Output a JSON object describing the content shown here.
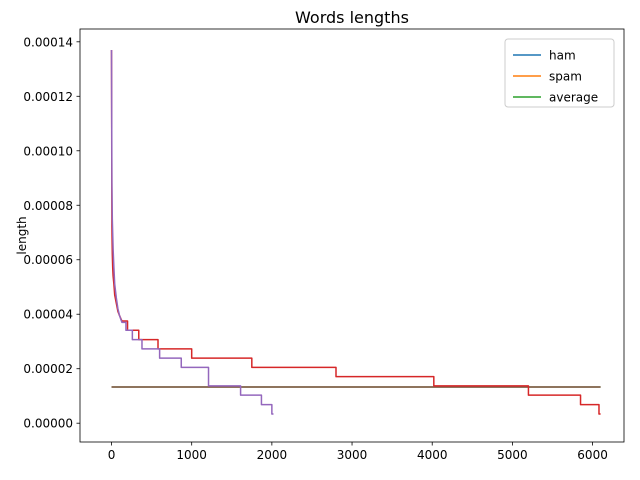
{
  "chart_data": {
    "type": "line",
    "title": "Words lengths",
    "xlabel": "",
    "ylabel": "length",
    "xlim": [
      -393,
      6392
    ],
    "ylim": [
      -6.9e-06,
      0.0001447
    ],
    "xticks": [
      0,
      1000,
      2000,
      3000,
      4000,
      5000,
      6000
    ],
    "xtick_labels": [
      "0",
      "1000",
      "2000",
      "3000",
      "4000",
      "5000",
      "6000"
    ],
    "yticks": [
      0.0,
      2e-05,
      4e-05,
      6e-05,
      8e-05,
      0.0001,
      0.00012,
      0.00014
    ],
    "ytick_labels": [
      "0.00000",
      "0.00002",
      "0.00004",
      "0.00006",
      "0.00008",
      "0.00010",
      "0.00012",
      "0.00014"
    ],
    "grid": false,
    "legend_position": "top-right",
    "legend": [
      {
        "label": "ham",
        "color": "#1f77b4"
      },
      {
        "label": "spam",
        "color": "#ff7f0e"
      },
      {
        "label": "average",
        "color": "#2ca02c"
      }
    ],
    "series": [
      {
        "name": "average",
        "color": "#2ca02c",
        "x": [
          0,
          6100
        ],
        "y": [
          1.33e-05,
          1.33e-05
        ]
      },
      {
        "color": "#8c564b",
        "x": [
          0,
          6100
        ],
        "y": [
          1.33e-05,
          1.33e-05
        ]
      },
      {
        "color": "#d62728",
        "x": [
          0,
          5,
          10,
          15,
          20,
          30,
          40,
          60,
          80,
          100,
          130,
          200,
          200,
          340,
          340,
          580,
          580,
          1000,
          1000,
          1750,
          1750,
          2800,
          2800,
          4020,
          4020,
          5200,
          5200,
          5850,
          5850,
          6080,
          6080,
          6100
        ],
        "y": [
          0.000137,
          7.2e-05,
          6.2e-05,
          5.7e-05,
          5.4e-05,
          5.1e-05,
          4.7e-05,
          4.4e-05,
          4.1e-05,
          3.95e-05,
          3.75e-05,
          3.75e-05,
          3.41e-05,
          3.41e-05,
          3.07e-05,
          3.07e-05,
          2.73e-05,
          2.73e-05,
          2.39e-05,
          2.39e-05,
          2.05e-05,
          2.05e-05,
          1.71e-05,
          1.71e-05,
          1.37e-05,
          1.37e-05,
          1.03e-05,
          1.03e-05,
          6.8e-06,
          6.8e-06,
          3.4e-06,
          3.4e-06
        ]
      },
      {
        "color": "#9467bd",
        "x": [
          0,
          5,
          10,
          20,
          30,
          40,
          60,
          80,
          100,
          130,
          180,
          180,
          260,
          260,
          380,
          380,
          600,
          600,
          870,
          870,
          1210,
          1210,
          1610,
          1610,
          1870,
          1870,
          2000,
          2000,
          2020
        ],
        "y": [
          0.000137,
          8.8e-05,
          7.5e-05,
          6.4e-05,
          5.7e-05,
          5.1e-05,
          4.6e-05,
          4.2e-05,
          3.95e-05,
          3.7e-05,
          3.7e-05,
          3.41e-05,
          3.41e-05,
          3.07e-05,
          3.07e-05,
          2.73e-05,
          2.73e-05,
          2.39e-05,
          2.39e-05,
          2.05e-05,
          2.05e-05,
          1.37e-05,
          1.37e-05,
          1.03e-05,
          1.03e-05,
          6.8e-06,
          6.8e-06,
          3.4e-06,
          3.4e-06
        ]
      }
    ]
  }
}
